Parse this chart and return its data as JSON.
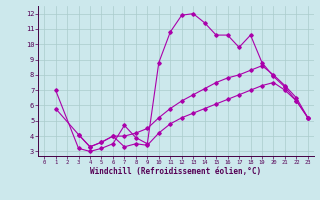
{
  "xlabel": "Windchill (Refroidissement éolien,°C)",
  "xlim": [
    -0.5,
    23.5
  ],
  "ylim": [
    2.7,
    12.5
  ],
  "yticks": [
    3,
    4,
    5,
    6,
    7,
    8,
    9,
    10,
    11,
    12
  ],
  "xticks": [
    0,
    1,
    2,
    3,
    4,
    5,
    6,
    7,
    8,
    9,
    10,
    11,
    12,
    13,
    14,
    15,
    16,
    17,
    18,
    19,
    20,
    21,
    22,
    23
  ],
  "bg_color": "#cce8ec",
  "line_color": "#aa00aa",
  "grid_color": "#aacccc",
  "spine_color": "#440044",
  "tick_color": "#550055",
  "line1_x": [
    1,
    3,
    4,
    5,
    6,
    7,
    8,
    9,
    10,
    11,
    12,
    13,
    14,
    15,
    16,
    17,
    18,
    19,
    20,
    21,
    22,
    23
  ],
  "line1_y": [
    7.0,
    3.2,
    3.0,
    3.2,
    3.5,
    4.7,
    3.9,
    3.5,
    8.8,
    10.8,
    11.9,
    12.0,
    11.4,
    10.6,
    10.6,
    9.8,
    10.6,
    8.8,
    7.9,
    7.2,
    6.3,
    5.2
  ],
  "line2_x": [
    1,
    3,
    4,
    5,
    6,
    7,
    8,
    9,
    10,
    11,
    12,
    13,
    14,
    15,
    16,
    17,
    18,
    19,
    20,
    21,
    22,
    23
  ],
  "line2_y": [
    5.8,
    4.1,
    3.3,
    3.6,
    4.0,
    4.0,
    4.2,
    4.5,
    5.2,
    5.8,
    6.3,
    6.7,
    7.1,
    7.5,
    7.8,
    8.0,
    8.3,
    8.6,
    8.0,
    7.3,
    6.5,
    5.2
  ],
  "line3_x": [
    3,
    4,
    5,
    6,
    7,
    8,
    9,
    10,
    11,
    12,
    13,
    14,
    15,
    16,
    17,
    18,
    19,
    20,
    21,
    22,
    23
  ],
  "line3_y": [
    4.1,
    3.3,
    3.6,
    4.0,
    3.3,
    3.5,
    3.4,
    4.2,
    4.8,
    5.2,
    5.5,
    5.8,
    6.1,
    6.4,
    6.7,
    7.0,
    7.3,
    7.5,
    7.0,
    6.3,
    5.2
  ]
}
